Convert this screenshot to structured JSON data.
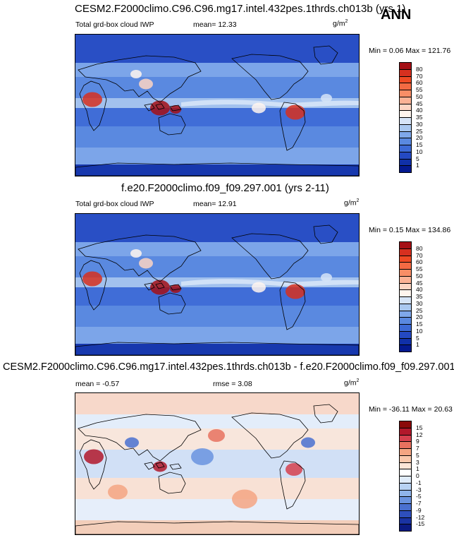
{
  "season": "ANN",
  "unit_label": "g/m",
  "unit_sup": "2",
  "panels": [
    {
      "title": "CESM2.F2000climo.C96.C96.mg17.intel.432pes.1thrds.ch013b (yrs 1)",
      "variable": "Total grd-box cloud IWP",
      "stat_text": "mean=  12.33",
      "minmax_text": "Min =   0.06 Max = 121.76",
      "colorbar_labels": [
        "80",
        "70",
        "60",
        "55",
        "50",
        "45",
        "40",
        "35",
        "30",
        "25",
        "20",
        "15",
        "10",
        "5",
        "1"
      ],
      "colors": [
        "#a50f15",
        "#d7301f",
        "#ef4a24",
        "#f46a43",
        "#f88e66",
        "#fbb295",
        "#fdd5c3",
        "#fff5ee",
        "#d6e4f7",
        "#aac8f0",
        "#7fa8ea",
        "#5a89e0",
        "#3d6ad6",
        "#2449c2",
        "#1030a8",
        "#04198f"
      ]
    },
    {
      "title": "f.e20.F2000climo.f09_f09.297.001 (yrs 2-11)",
      "variable": "Total grd-box cloud IWP",
      "stat_text": "mean=  12.91",
      "minmax_text": "Min =   0.15 Max = 134.86",
      "colorbar_labels": [
        "80",
        "70",
        "60",
        "55",
        "50",
        "45",
        "40",
        "35",
        "30",
        "25",
        "20",
        "15",
        "10",
        "5",
        "1"
      ],
      "colors": [
        "#a50f15",
        "#d7301f",
        "#ef4a24",
        "#f46a43",
        "#f88e66",
        "#fbb295",
        "#fdd5c3",
        "#fff5ee",
        "#d6e4f7",
        "#aac8f0",
        "#7fa8ea",
        "#5a89e0",
        "#3d6ad6",
        "#2449c2",
        "#1030a8",
        "#04198f"
      ]
    },
    {
      "title": "CESM2.F2000climo.C96.C96.mg17.intel.432pes.1thrds.ch013b - f.e20.F2000climo.f09_f09.297.001",
      "variable": "",
      "stat_text": "mean =  -0.57",
      "rmse_text": "rmse =    3.08",
      "minmax_text": "Min = -36.11 Max =  20.63",
      "colorbar_labels": [
        "15",
        "12",
        "9",
        "7",
        "5",
        "3",
        "1",
        "0",
        "-1",
        "-3",
        "-5",
        "-7",
        "-9",
        "-12",
        "-15"
      ],
      "colors": [
        "#8b0a0a",
        "#b2182b",
        "#d6404e",
        "#e8715f",
        "#f4a582",
        "#f9c8ac",
        "#fde6d8",
        "#ffffff",
        "#e0ecfa",
        "#b8d2f3",
        "#8fb4ea",
        "#6a93df",
        "#4a70d0",
        "#2e4fbd",
        "#1a33a3",
        "#0b1a82"
      ]
    }
  ]
}
